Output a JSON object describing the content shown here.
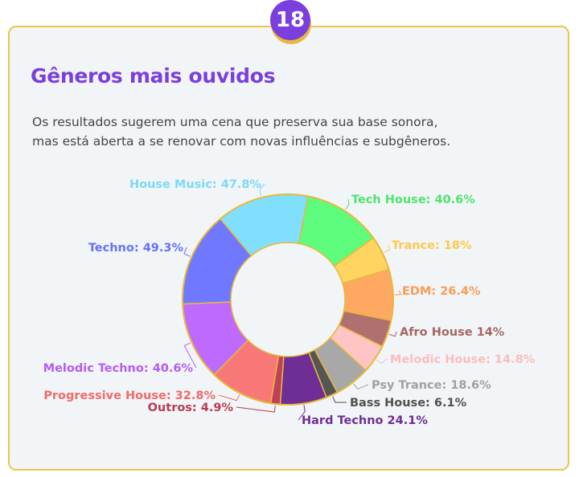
{
  "badge": "18",
  "title": "Gêneros mais ouvidos",
  "description": [
    "Os resultados sugerem uma cena que preserva sua base sonora,",
    "mas está aberta a se renovar com novas influências e subgêneros."
  ],
  "chart_data": {
    "type": "pie",
    "donut": true,
    "categories": [
      "Tech House",
      "Trance",
      "EDM",
      "Afro House",
      "Melodic House",
      "Psy Trance",
      "Bass House",
      "Hard Techno",
      "Outros",
      "Progressive House",
      "Melodic Techno",
      "Techno",
      "House Music"
    ],
    "values": [
      40.6,
      18,
      26.4,
      14,
      14.8,
      18.6,
      6.1,
      24.1,
      4.9,
      32.8,
      40.6,
      49.3,
      47.8
    ],
    "labels": [
      "Tech House: 40.6%",
      "Trance: 18%",
      "EDM: 26.4%",
      "Afro House 14%",
      "Melodic House: 14.8%",
      "Psy Trance: 18.6%",
      "Bass House: 6.1%",
      "Hard Techno 24.1%",
      "Outros: 4.9%",
      "Progressive House: 32.8%",
      "Melodic Techno: 40.6%",
      "Techno: 49.3%",
      "House Music: 47.8%"
    ],
    "colors": [
      "#5efc7c",
      "#ffd460",
      "#ffa861",
      "#b07070",
      "#ffc4c4",
      "#a8a8a8",
      "#555555",
      "#6e2e96",
      "#c0405a",
      "#f87878",
      "#bf6aff",
      "#7078ff",
      "#80dffd"
    ],
    "label_colors": [
      "#4fe46a",
      "#fdc94e",
      "#fb9c55",
      "#a86464",
      "#fcbcbc",
      "#a0a0a0",
      "#505050",
      "#6e2e96",
      "#b83c50",
      "#f26a6a",
      "#b45cf8",
      "#6670ff",
      "#7dd8f8"
    ],
    "border_color": "#e6b93a"
  }
}
